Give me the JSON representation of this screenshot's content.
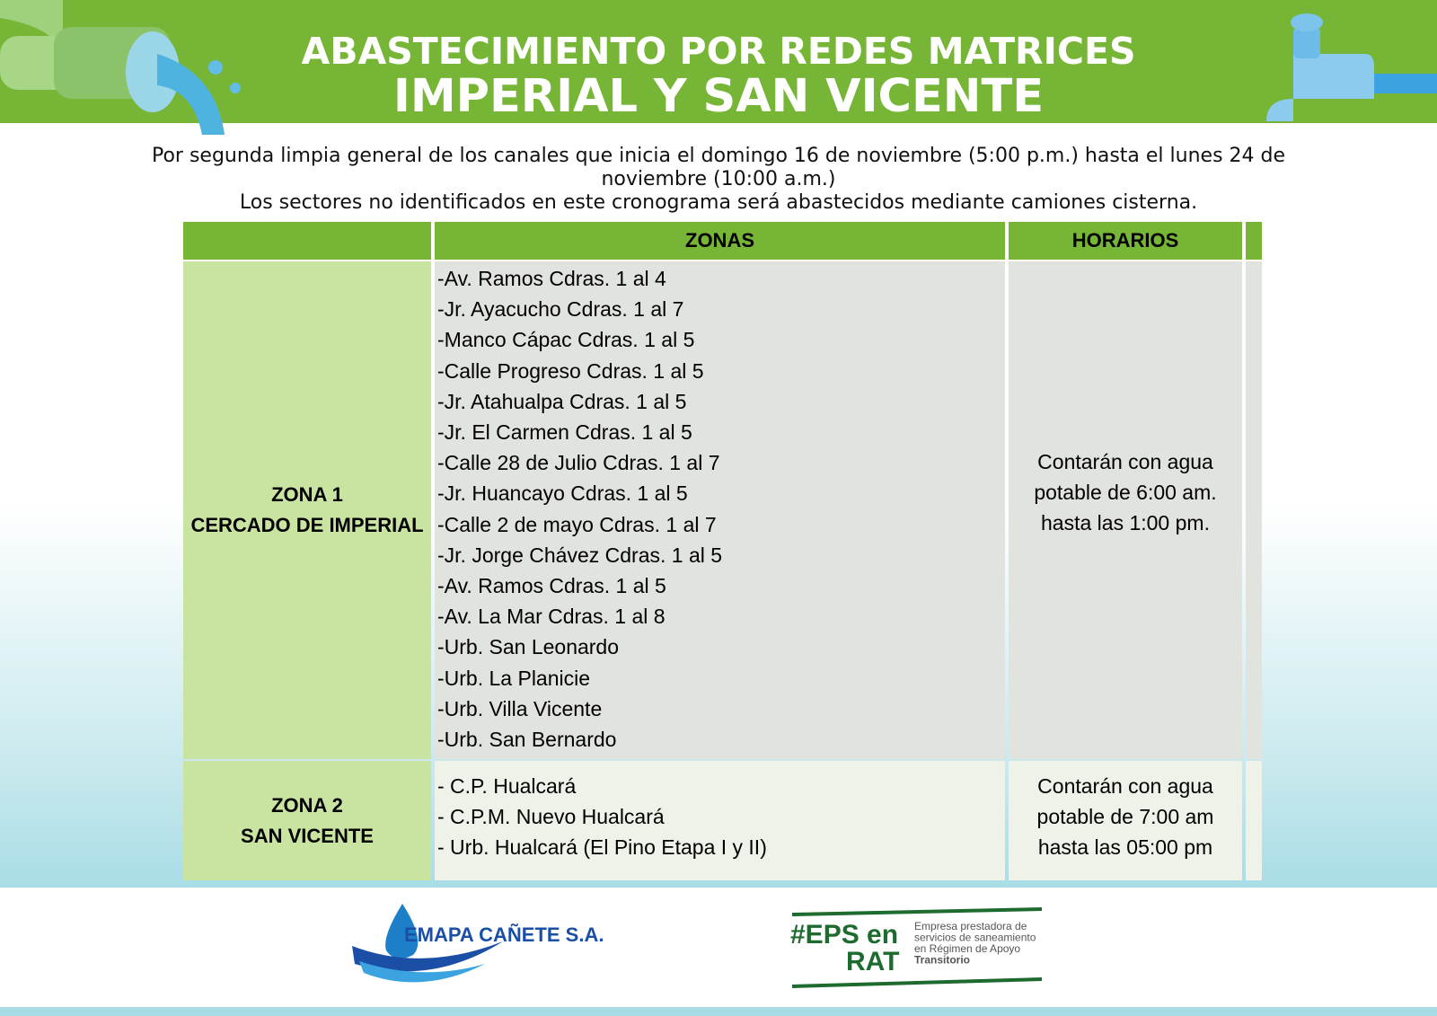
{
  "header": {
    "title_line1": "ABASTECIMIENTO POR REDES MATRICES",
    "title_line2": "IMPERIAL Y SAN VICENTE"
  },
  "intro": {
    "line1": "Por segunda limpia general de los canales que inicia el domingo 16 de noviembre (5:00 p.m.) hasta el lunes 24 de noviembre (10:00 a.m.)",
    "line2": "Los sectores no identificados en este cronograma será abastecidos mediante camiones cisterna."
  },
  "table": {
    "headers": {
      "zonas": "ZONAS",
      "horarios": "HORARIOS"
    },
    "rows": [
      {
        "zone": [
          "ZONA 1",
          "CERCADO DE IMPERIAL"
        ],
        "streets": [
          "-Av. Ramos Cdras. 1 al 4",
          "-Jr. Ayacucho Cdras. 1 al 7",
          "-Manco Cápac Cdras. 1 al 5",
          "-Calle Progreso Cdras. 1 al 5",
          "-Jr. Atahualpa Cdras. 1 al 5",
          "-Jr. El Carmen Cdras. 1 al 5",
          "-Calle 28 de Julio Cdras. 1 al 7",
          "-Jr. Huancayo Cdras. 1 al 5",
          "-Calle 2 de mayo Cdras. 1 al 7",
          "-Jr. Jorge Chávez Cdras. 1 al 5",
          "-Av. Ramos Cdras. 1 al 5",
          "-Av. La Mar Cdras. 1 al 8",
          "-Urb. San Leonardo",
          "-Urb. La Planicie",
          "-Urb. Villa Vicente",
          "-Urb. San Bernardo"
        ],
        "schedule": [
          "Contarán con agua",
          "potable de 6:00 am.",
          "hasta las 1:00 pm."
        ]
      },
      {
        "zone": [
          "ZONA 2",
          "SAN VICENTE"
        ],
        "streets": [
          "- C.P. Hualcará",
          "- C.P.M. Nuevo Hualcará",
          "- Urb. Hualcará (El Pino Etapa I y II)"
        ],
        "schedule": [
          "Contarán con agua",
          "potable de 7:00 am",
          "hasta las 05:00 pm"
        ]
      }
    ]
  },
  "footer": {
    "logo1": "EMAPA CAÑETE S.A.",
    "logo2_line1": "#EPS en",
    "logo2_line2": "RAT",
    "logo2_text": [
      "Empresa prestadora de",
      "servicios de saneamiento",
      "en Régimen de Apoyo",
      "Transitorio"
    ]
  }
}
